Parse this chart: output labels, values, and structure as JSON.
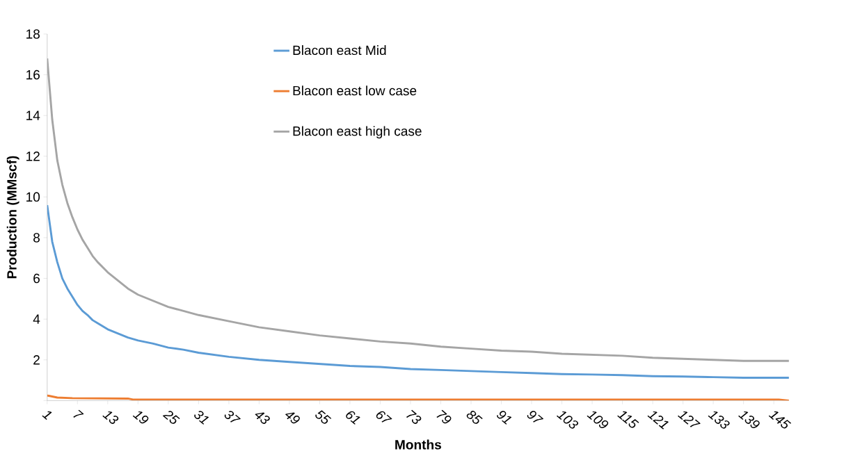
{
  "chart_data": {
    "type": "line",
    "xlabel": "Months",
    "ylabel": "Production (MMscf)",
    "xlim": [
      1,
      148
    ],
    "xticks": [
      1,
      7,
      13,
      19,
      25,
      31,
      37,
      43,
      49,
      55,
      61,
      67,
      73,
      79,
      85,
      91,
      97,
      103,
      109,
      115,
      121,
      127,
      133,
      139,
      145
    ],
    "ylim": [
      0,
      18
    ],
    "yticks": [
      {
        "value": 0,
        "label": null
      },
      2,
      4,
      6,
      8,
      10,
      12,
      14,
      16,
      18
    ],
    "grid": false,
    "legend": "top",
    "marker": "none",
    "line_style": "solid",
    "series": [
      {
        "name": "Blacon east Mid",
        "color": "#5b9bd5",
        "x": [
          1,
          2,
          3,
          4,
          5,
          6,
          7,
          8,
          9,
          10,
          11,
          13,
          15,
          17,
          19,
          22,
          25,
          28,
          31,
          37,
          43,
          49,
          55,
          61,
          67,
          73,
          79,
          85,
          91,
          97,
          103,
          109,
          115,
          121,
          127,
          133,
          139,
          148
        ],
        "values": [
          9.6,
          7.8,
          6.8,
          6.0,
          5.5,
          5.1,
          4.7,
          4.4,
          4.2,
          3.95,
          3.8,
          3.5,
          3.3,
          3.1,
          2.95,
          2.8,
          2.6,
          2.5,
          2.35,
          2.15,
          2.0,
          1.9,
          1.8,
          1.7,
          1.65,
          1.55,
          1.5,
          1.45,
          1.4,
          1.35,
          1.3,
          1.28,
          1.25,
          1.2,
          1.18,
          1.15,
          1.12,
          1.12
        ]
      },
      {
        "name": "Blacon east low case",
        "color": "#ed7d31",
        "x": [
          1,
          3,
          6,
          17,
          18,
          146,
          148
        ],
        "values": [
          0.25,
          0.15,
          0.12,
          0.1,
          0.05,
          0.05,
          0.0
        ]
      },
      {
        "name": "Blacon east high case",
        "color": "#a5a5a5",
        "x": [
          1,
          2,
          3,
          4,
          5,
          6,
          7,
          8,
          9,
          10,
          11,
          13,
          15,
          17,
          19,
          22,
          25,
          28,
          31,
          37,
          43,
          49,
          55,
          61,
          67,
          73,
          79,
          85,
          91,
          97,
          103,
          109,
          115,
          121,
          127,
          133,
          139,
          148
        ],
        "values": [
          16.8,
          13.8,
          11.8,
          10.6,
          9.7,
          9.0,
          8.4,
          7.9,
          7.5,
          7.1,
          6.8,
          6.3,
          5.9,
          5.5,
          5.2,
          4.9,
          4.6,
          4.4,
          4.2,
          3.9,
          3.6,
          3.4,
          3.2,
          3.05,
          2.9,
          2.8,
          2.65,
          2.55,
          2.45,
          2.4,
          2.3,
          2.25,
          2.2,
          2.1,
          2.05,
          2.0,
          1.95,
          1.95
        ]
      }
    ]
  }
}
